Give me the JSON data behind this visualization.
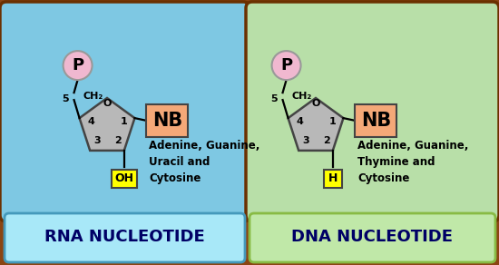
{
  "figw": 5.5,
  "figh": 2.92,
  "dpi": 100,
  "outer_bg": "#8B4513",
  "rna_bg": "#7EC8E3",
  "dna_bg": "#B8DFA8",
  "pentagon_color": "#B8B8B8",
  "pentagon_edge": "#444444",
  "p_circle_color": "#F0B8D0",
  "p_circle_edge": "#999999",
  "nb_box_color": "#F4A878",
  "nb_box_edge": "#444444",
  "oh_box_color": "#FFFF00",
  "oh_box_edge": "#444444",
  "rna_label": "RNA NUCLEOTIDE",
  "dna_label": "DNA NUCLEOTIDE",
  "rna_bases": "Adenine, Guanine,\nUracil and\nCytosine",
  "dna_bases": "Adenine, Guanine,\nThymine and\nCytosine",
  "bottom_rna_bg_left": "#A8E0F8",
  "bottom_rna_bg_right": "#FFFFFF",
  "bottom_dna_bg_left": "#D8F0C8",
  "bottom_dna_bg_right": "#FFFFFF",
  "title_fontsize": 13,
  "nb_fontsize": 15,
  "p_fontsize": 13,
  "small_fontsize": 8,
  "label_color": "#000066"
}
